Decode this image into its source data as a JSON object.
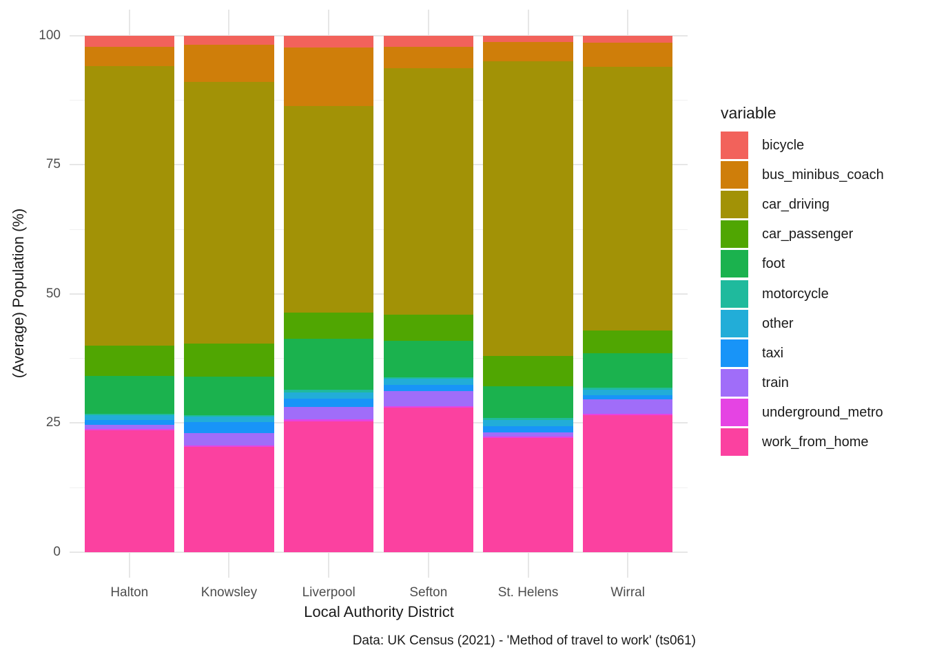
{
  "chart_data": {
    "type": "bar",
    "stacked": true,
    "orientation": "vertical",
    "title": "",
    "xlabel": "Local Authority District",
    "ylabel": "(Average) Population (%)",
    "caption": "Data: UK Census (2021) - 'Method of travel to work' (ts061)",
    "legend_title": "variable",
    "legend_position": "right",
    "grid": true,
    "ylim": [
      0,
      100
    ],
    "ytick_labels": [
      "0",
      "25",
      "50",
      "75",
      "100"
    ],
    "yticks": [
      0,
      25,
      50,
      75,
      100
    ],
    "minor_gridlines": [
      12.5,
      37.5,
      62.5,
      87.5
    ],
    "categories": [
      "Halton",
      "Knowsley",
      "Liverpool",
      "Sefton",
      "St. Helens",
      "Wirral"
    ],
    "stack_order_bottom_to_top": [
      "work_from_home",
      "underground_metro",
      "train",
      "taxi",
      "other",
      "motorcycle",
      "foot",
      "car_passenger",
      "car_driving",
      "bus_minibus_coach",
      "bicycle"
    ],
    "series": [
      {
        "name": "bicycle",
        "color": "#F2625B",
        "values": [
          2.2,
          1.8,
          2.3,
          2.2,
          1.3,
          1.4
        ]
      },
      {
        "name": "bus_minibus_coach",
        "color": "#CF7E0A",
        "values": [
          3.7,
          7.2,
          11.4,
          4.1,
          3.7,
          4.6
        ]
      },
      {
        "name": "car_driving",
        "color": "#A29206",
        "values": [
          54.1,
          50.6,
          40.0,
          47.8,
          57.0,
          51.1
        ]
      },
      {
        "name": "car_passenger",
        "color": "#50A602",
        "values": [
          5.9,
          6.4,
          5.0,
          5.0,
          5.9,
          4.4
        ]
      },
      {
        "name": "foot",
        "color": "#1BB24E",
        "values": [
          7.3,
          7.5,
          9.9,
          7.1,
          6.1,
          6.7
        ]
      },
      {
        "name": "motorcycle",
        "color": "#1FBA9D",
        "values": [
          0.3,
          0.3,
          0.5,
          0.3,
          0.4,
          0.4
        ]
      },
      {
        "name": "other",
        "color": "#22ADD8",
        "values": [
          1.0,
          1.0,
          1.2,
          1.2,
          1.3,
          1.1
        ]
      },
      {
        "name": "taxi",
        "color": "#1894F8",
        "values": [
          0.9,
          2.2,
          1.6,
          1.1,
          1.2,
          0.8
        ]
      },
      {
        "name": "train",
        "color": "#A06DF9",
        "values": [
          0.8,
          2.4,
          2.4,
          3.0,
          0.8,
          2.7
        ]
      },
      {
        "name": "underground_metro",
        "color": "#E544E3",
        "values": [
          0.3,
          0.2,
          0.4,
          0.3,
          0.2,
          0.3
        ]
      },
      {
        "name": "work_from_home",
        "color": "#FB41A0",
        "values": [
          23.5,
          20.4,
          25.3,
          27.9,
          22.1,
          26.5
        ]
      }
    ]
  }
}
